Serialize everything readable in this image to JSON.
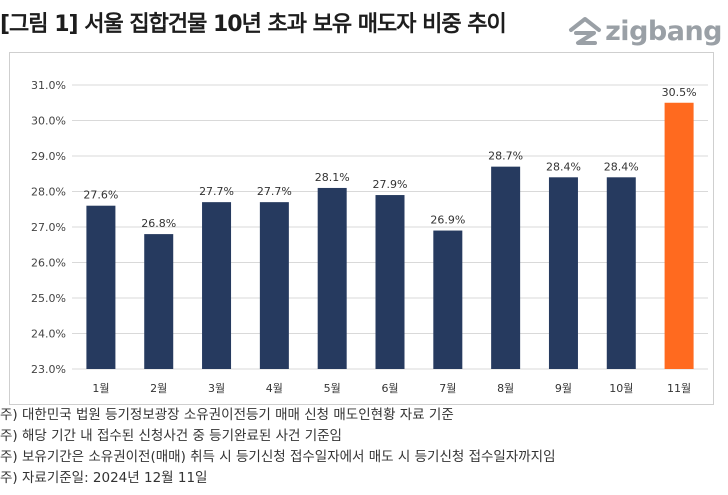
{
  "header": {
    "title": "[그림 1] 서울 집합건물 10년 초과 보유 매도자 비중 추이",
    "logo_text": "zigbang",
    "logo_color": "#9aa0a6"
  },
  "chart_data": {
    "type": "bar",
    "categories": [
      "1월",
      "2월",
      "3월",
      "4월",
      "5월",
      "6월",
      "7월",
      "8월",
      "9월",
      "10월",
      "11월"
    ],
    "values": [
      27.6,
      26.8,
      27.7,
      27.7,
      28.1,
      27.9,
      26.9,
      28.7,
      28.4,
      28.4,
      30.5
    ],
    "data_labels": [
      "27.6%",
      "26.8%",
      "27.7%",
      "27.7%",
      "28.1%",
      "27.9%",
      "26.9%",
      "28.7%",
      "28.4%",
      "28.4%",
      "30.5%"
    ],
    "y_ticks": [
      "23.0%",
      "24.0%",
      "25.0%",
      "26.0%",
      "27.0%",
      "28.0%",
      "29.0%",
      "30.0%",
      "31.0%"
    ],
    "ylim": [
      23,
      31
    ],
    "title": "",
    "xlabel": "",
    "ylabel": "",
    "grid": true,
    "legend": "none",
    "bar_color": "#263a5f",
    "highlight_color": "#ff6a1f",
    "highlight_index": 10
  },
  "notes": [
    "주) 대한민국 법원 등기정보광장 소유권이전등기 매매 신청 매도인현황 자료 기준",
    "주) 해당 기간 내 접수된 신청사건 중 등기완료된 사건 기준임",
    "주) 보유기간은 소유권이전(매매) 취득 시 등기신청 접수일자에서 매도 시 등기신청 접수일자까지임",
    "주) 자료기준일: 2024년 12월 11일"
  ]
}
